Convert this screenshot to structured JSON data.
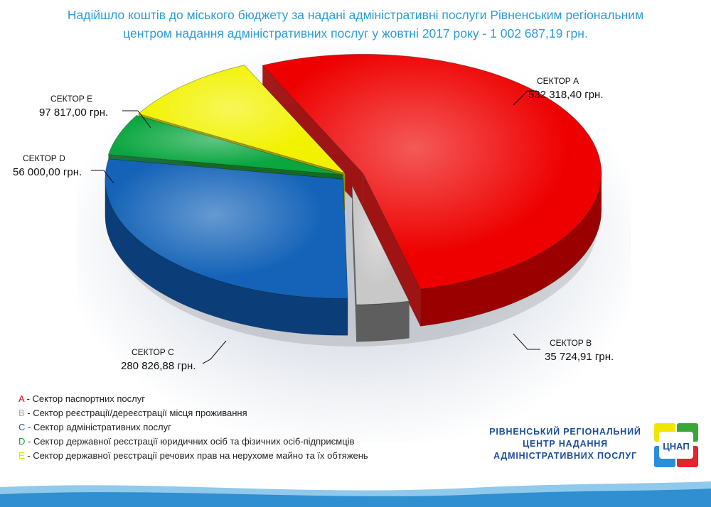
{
  "title_lines": [
    "Надійшло коштів до міського бюджету за надані адміністративні послуги Рівненським регіональним",
    "центром надання адміністративних послуг у жовтні 2017 року - 1 002 687,19 грн."
  ],
  "colors": {
    "title": "#2e9bd6",
    "org": "#1f4e9a"
  },
  "chart_data": {
    "type": "pie",
    "title": "Надійшло коштів до міського бюджету за надані адміністративні послуги Рівненським регіональним центром надання адміністративних послуг у жовтні 2017 року - 1 002 687,19 грн.",
    "total": 1002687.19,
    "slices": [
      {
        "key": "A",
        "name": "СЕКТОР А",
        "value": 532318.4,
        "value_label": "532 318,40 грн.",
        "color": "#ee0000",
        "side": "#9a0000"
      },
      {
        "key": "B",
        "name": "СЕКТОР В",
        "value": 35724.91,
        "value_label": "35 724,91 грн.",
        "color": "#c8c8c8",
        "side": "#5e5e5e"
      },
      {
        "key": "C",
        "name": "СЕКТОР С",
        "value": 280826.88,
        "value_label": "280 826,88 грн.",
        "color": "#1463b8",
        "side": "#0b3d78"
      },
      {
        "key": "D",
        "name": "СЕКТОР D",
        "value": 56000.0,
        "value_label": "56 000,00 грн.",
        "color": "#0aa640",
        "side": "#056326"
      },
      {
        "key": "E",
        "name": "СЕКТОР Е",
        "value": 97817.0,
        "value_label": "97 817,00 грн.",
        "color": "#f2f200",
        "side": "#9a9a00"
      }
    ]
  },
  "legend": [
    {
      "letter": "A",
      "text": " - Сектор паспортних послуг",
      "color": "#ee0000"
    },
    {
      "letter": "B",
      "text": " - Сектор реєстрації/дереєстрації місця проживання",
      "color": "#aaaaaa"
    },
    {
      "letter": "C",
      "text": " - Сектор адміністративних послуг",
      "color": "#1463b8"
    },
    {
      "letter": "D",
      "text": " - Сектор державної реєстрації юридичних осіб та фізичних осіб-підприємців",
      "color": "#0aa640"
    },
    {
      "letter": "E",
      "text": " - Сектор державної реєстрації речових прав на нерухоме майно та їх обтяжень",
      "color": "#e6e600"
    }
  ],
  "org_lines": [
    "РІВНЕНСЬКИЙ РЕГІОНАЛЬНИЙ",
    "ЦЕНТР НАДАННЯ",
    "АДМІНІСТРАТИВНИХ ПОСЛУГ"
  ],
  "logo_text": "ЦНАП"
}
